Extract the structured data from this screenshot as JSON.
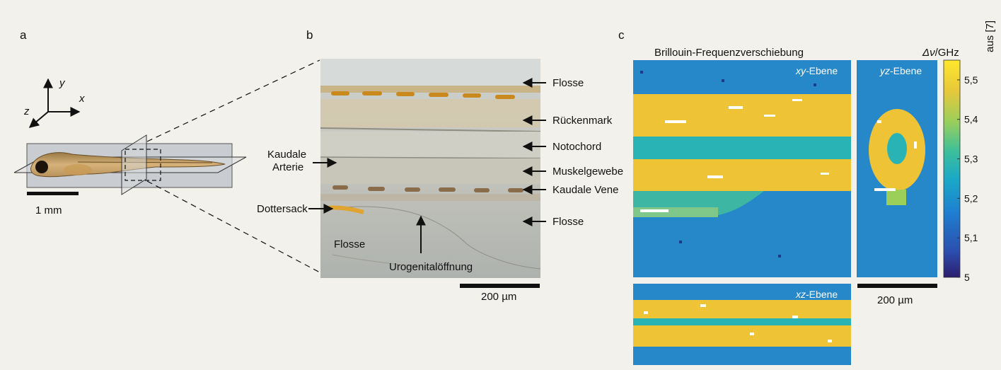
{
  "credit": "aus [7]",
  "panel_a": {
    "label": "a",
    "axes": {
      "x": "x",
      "y": "y",
      "z": "z"
    },
    "scalebar": "1 mm"
  },
  "panel_b": {
    "label": "b",
    "labels": {
      "flosse_top": "Flosse",
      "rueckenmark": "Rückenmark",
      "notochord": "Notochord",
      "muskelgewebe": "Muskelgewebe",
      "kaudale_vene": "Kaudale Vene",
      "flosse_right": "Flosse",
      "kaudale": "Kaudale",
      "arterie": "Arterie",
      "dottersack": "Dottersack",
      "flosse_inner": "Flosse",
      "urogenital": "Urogenitalöffnung"
    },
    "scalebar": "200 µm"
  },
  "panel_c": {
    "label": "c",
    "title": "Brillouin-Frequenzverschiebung",
    "unit_symbol": "Δν",
    "unit": "/GHz",
    "planes": {
      "xy_italic": "xy",
      "yz_italic": "yz",
      "xz_italic": "xz",
      "suffix": "-Ebene"
    },
    "scalebar": "200 µm"
  },
  "chart_data": {
    "type": "heatmap",
    "title": "Brillouin-Frequenzverschiebung",
    "colorbar_label": "Δν/GHz",
    "colorbar_ticks": [
      "5,5",
      "5,4",
      "5,3",
      "5,2",
      "5,1",
      "5"
    ],
    "colorbar_range": [
      5.0,
      5.55
    ],
    "colormap": [
      "#2d1e6e",
      "#2b4fb0",
      "#1f7fd0",
      "#1aa8c8",
      "#3cbf9a",
      "#9ccf5a",
      "#e8c83a",
      "#fde72c"
    ]
  },
  "colors": {
    "background": "#f3f1eb",
    "heatmap_base": "#2788c9",
    "heatmap_high": "#eec436",
    "heatmap_mid": "#2ab3b5"
  }
}
